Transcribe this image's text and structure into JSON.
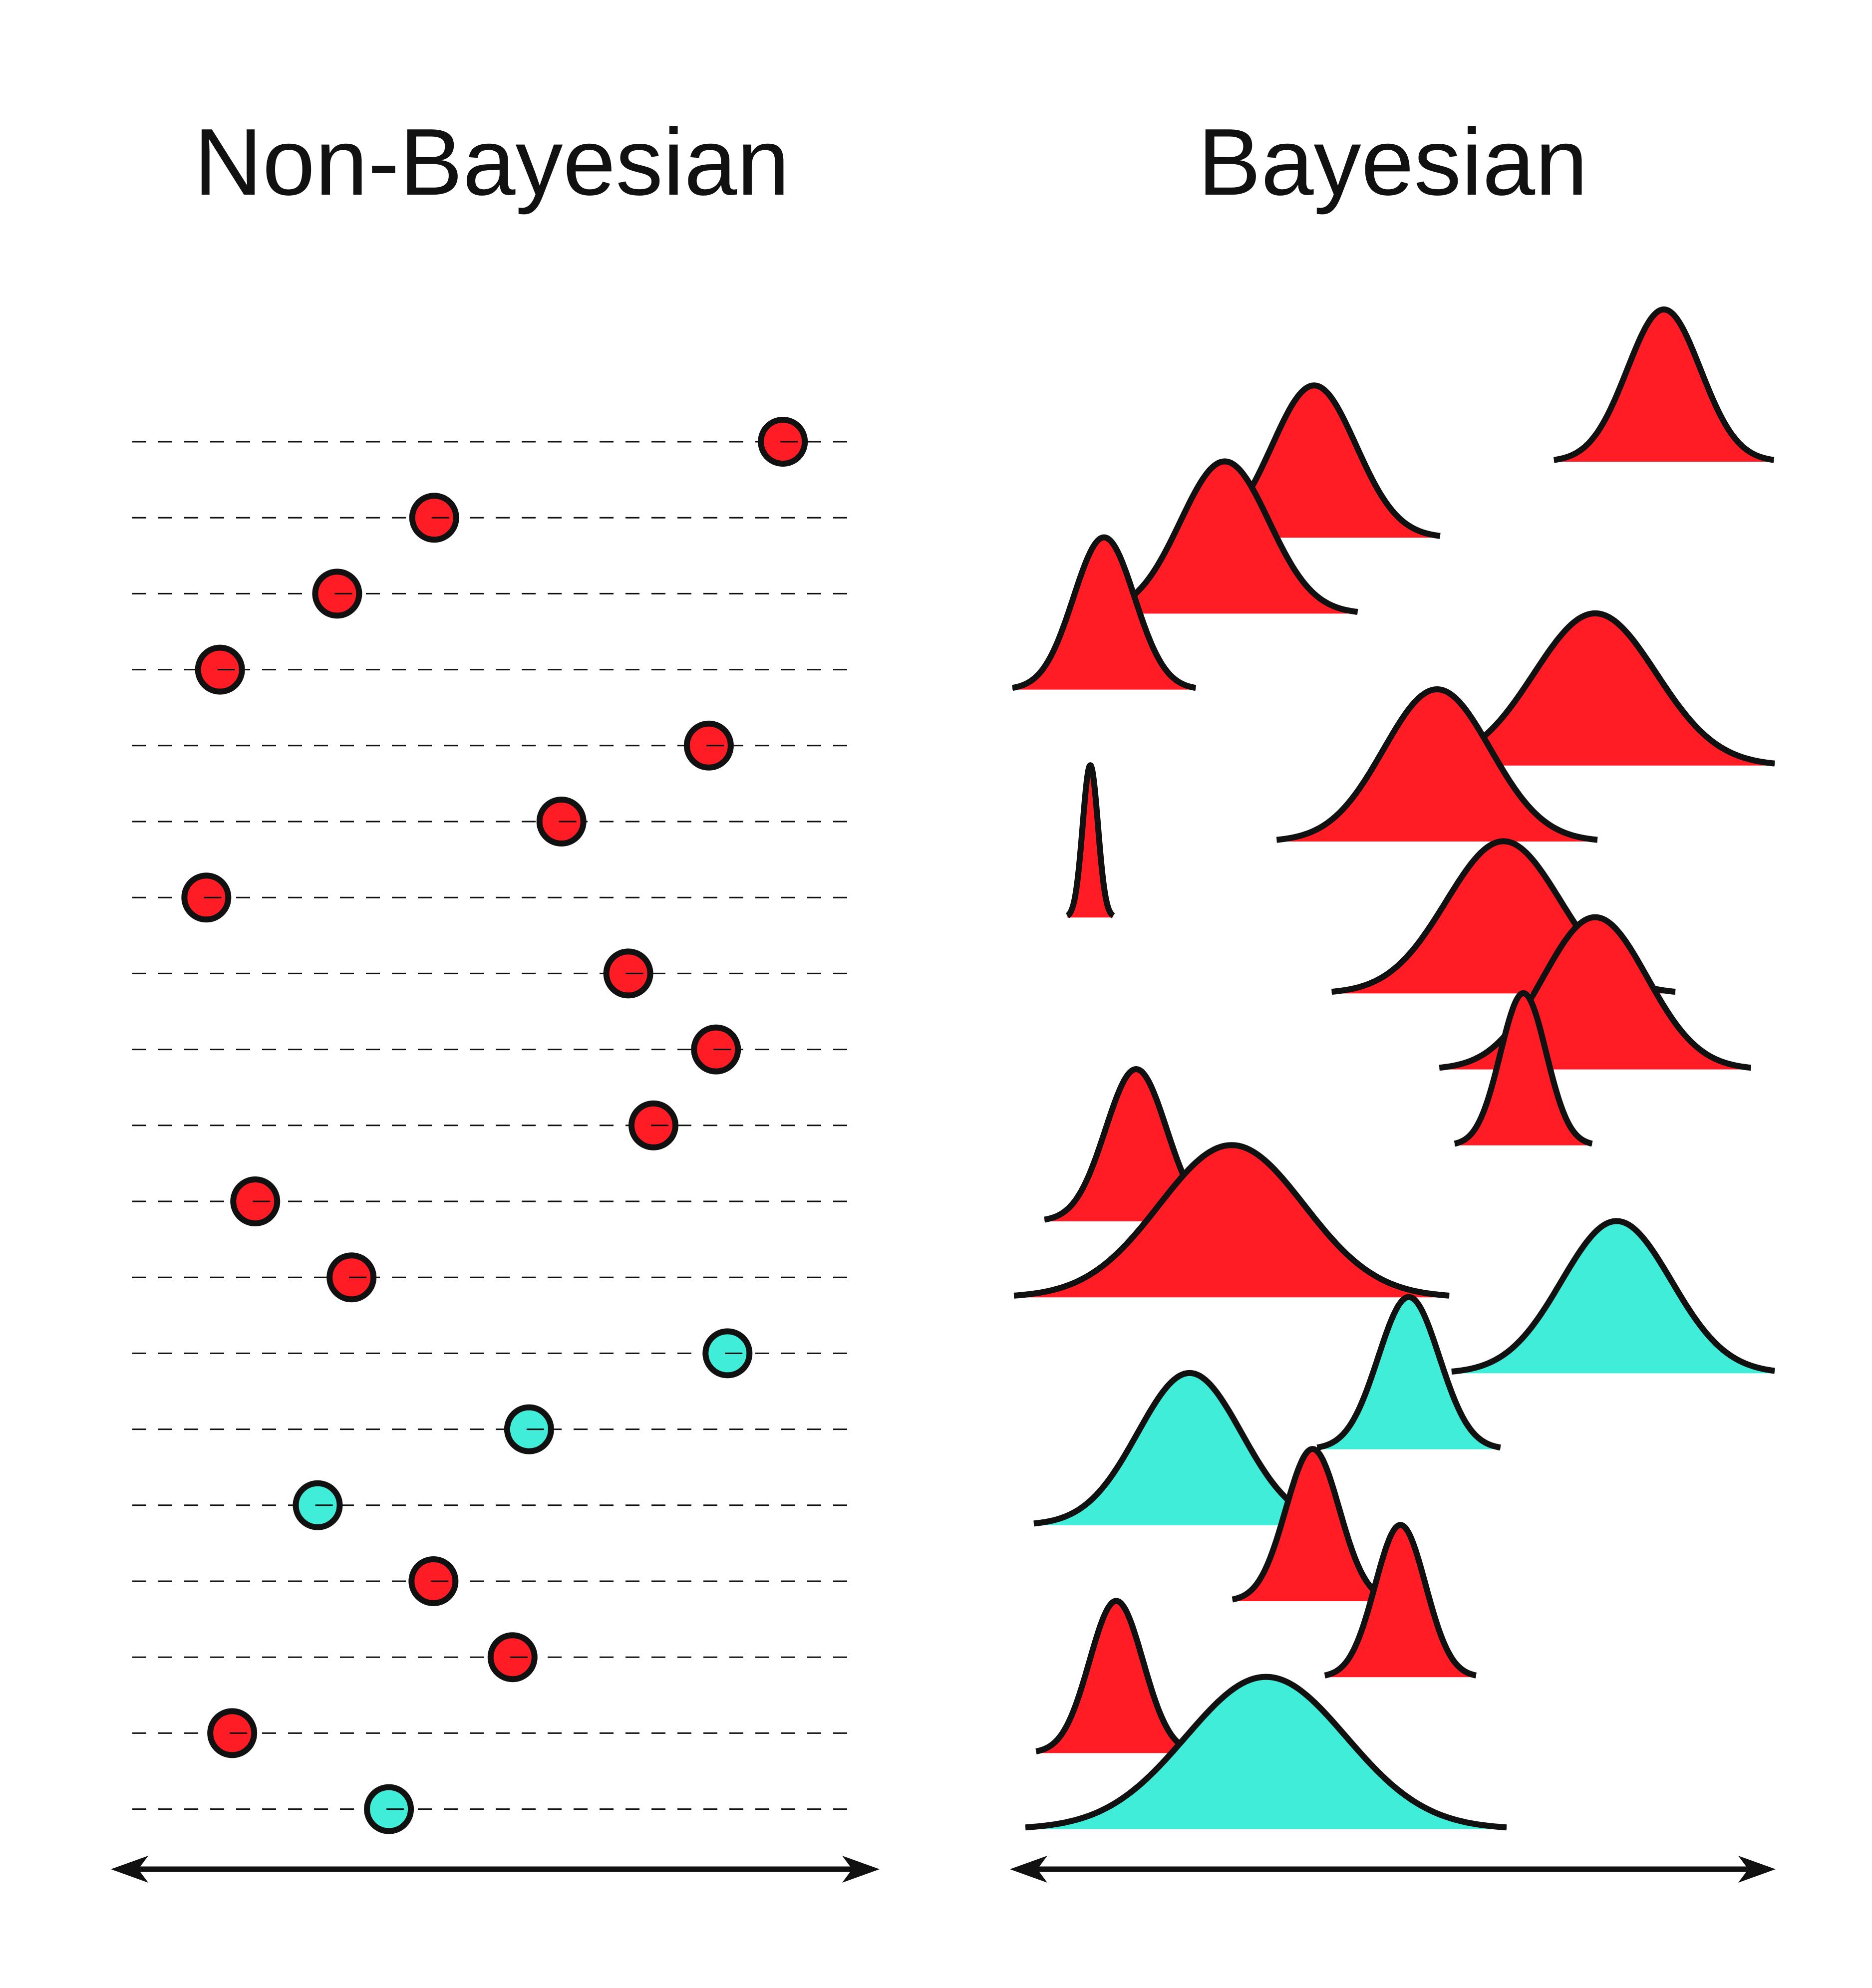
{
  "titles": {
    "left": "Non-Bayesian",
    "right": "Bayesian"
  },
  "colors": {
    "red": "#ff1c25",
    "cyan": "#3fedd8",
    "stroke": "#111111",
    "background": "#ffffff"
  },
  "chart_data": [
    {
      "type": "scatter",
      "panel": "Non-Bayesian",
      "description_units": "x in 0-1 fraction of axis; one point estimate per row, rows top to bottom",
      "points": [
        {
          "x": 0.905,
          "class": "red"
        },
        {
          "x": 0.42,
          "class": "red"
        },
        {
          "x": 0.285,
          "class": "red"
        },
        {
          "x": 0.122,
          "class": "red"
        },
        {
          "x": 0.802,
          "class": "red"
        },
        {
          "x": 0.597,
          "class": "red"
        },
        {
          "x": 0.103,
          "class": "red"
        },
        {
          "x": 0.69,
          "class": "red"
        },
        {
          "x": 0.812,
          "class": "red"
        },
        {
          "x": 0.725,
          "class": "red"
        },
        {
          "x": 0.171,
          "class": "red"
        },
        {
          "x": 0.305,
          "class": "red"
        },
        {
          "x": 0.828,
          "class": "cyan"
        },
        {
          "x": 0.552,
          "class": "cyan"
        },
        {
          "x": 0.258,
          "class": "cyan"
        },
        {
          "x": 0.419,
          "class": "red"
        },
        {
          "x": 0.529,
          "class": "red"
        },
        {
          "x": 0.139,
          "class": "red"
        },
        {
          "x": 0.357,
          "class": "cyan"
        }
      ]
    },
    {
      "type": "area",
      "panel": "Bayesian",
      "description_units": "gaussian posteriors: mean and sd as fraction of axis width, rows top to bottom",
      "distributions": [
        {
          "mean": 0.855,
          "sd": 0.048,
          "class": "red"
        },
        {
          "mean": 0.397,
          "sd": 0.055,
          "class": "red"
        },
        {
          "mean": 0.28,
          "sd": 0.058,
          "class": "red"
        },
        {
          "mean": 0.122,
          "sd": 0.04,
          "class": "red"
        },
        {
          "mean": 0.765,
          "sd": 0.08,
          "class": "red"
        },
        {
          "mean": 0.558,
          "sd": 0.07,
          "class": "red"
        },
        {
          "mean": 0.104,
          "sd": 0.01,
          "class": "red"
        },
        {
          "mean": 0.645,
          "sd": 0.075,
          "class": "red"
        },
        {
          "mean": 0.765,
          "sd": 0.068,
          "class": "red"
        },
        {
          "mean": 0.671,
          "sd": 0.03,
          "class": "red"
        },
        {
          "mean": 0.164,
          "sd": 0.04,
          "class": "red"
        },
        {
          "mean": 0.289,
          "sd": 0.095,
          "class": "red"
        },
        {
          "mean": 0.793,
          "sd": 0.072,
          "class": "cyan"
        },
        {
          "mean": 0.521,
          "sd": 0.04,
          "class": "cyan"
        },
        {
          "mean": 0.234,
          "sd": 0.068,
          "class": "cyan"
        },
        {
          "mean": 0.395,
          "sd": 0.035,
          "class": "red"
        },
        {
          "mean": 0.51,
          "sd": 0.033,
          "class": "red"
        },
        {
          "mean": 0.138,
          "sd": 0.035,
          "class": "red"
        },
        {
          "mean": 0.334,
          "sd": 0.105,
          "class": "cyan"
        }
      ]
    }
  ]
}
